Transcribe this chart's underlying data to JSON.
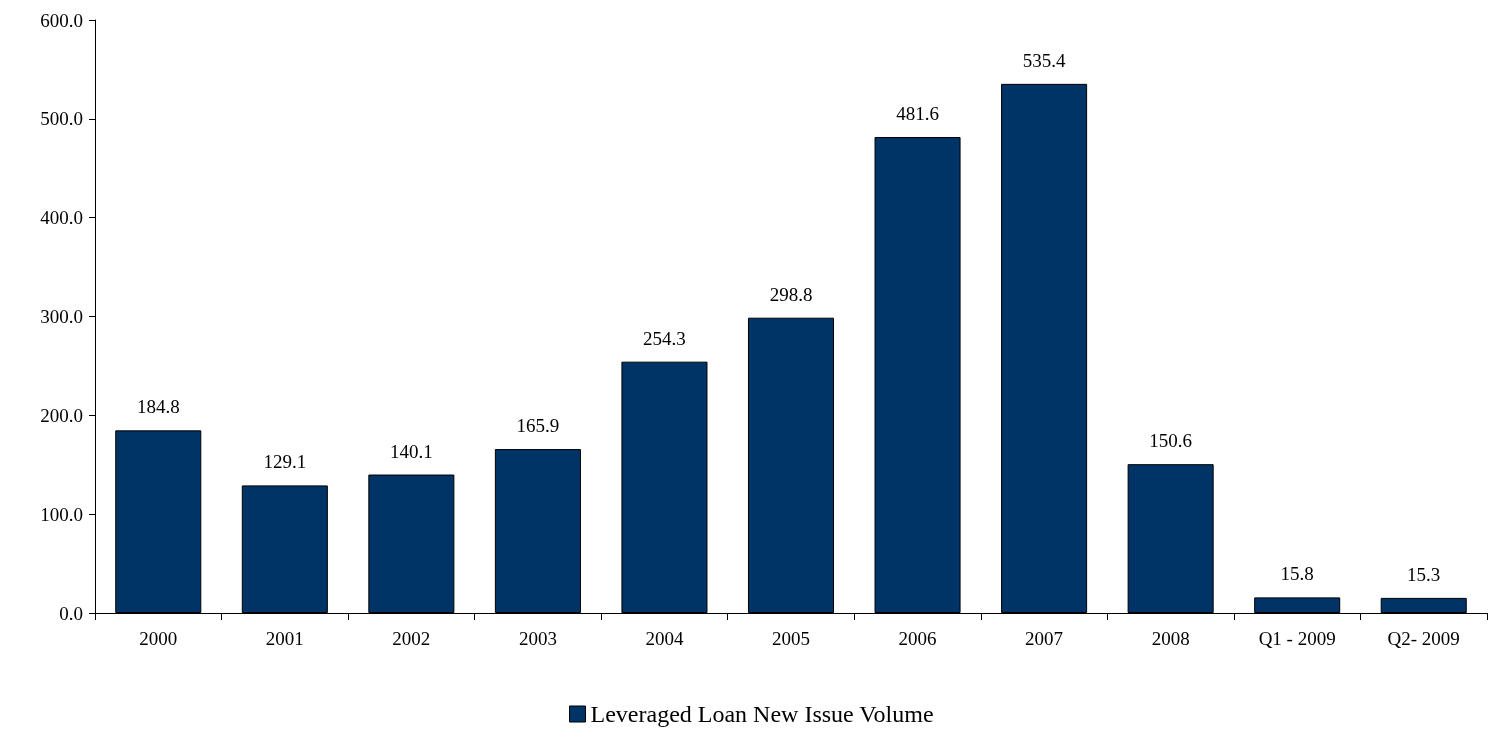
{
  "chart_data": {
    "type": "bar",
    "categories": [
      "2000",
      "2001",
      "2002",
      "2003",
      "2004",
      "2005",
      "2006",
      "2007",
      "2008",
      "Q1 - 2009",
      "Q2- 2009"
    ],
    "series": [
      {
        "name": "Leveraged Loan New Issue Volume",
        "color": "#003366",
        "values": [
          184.8,
          129.1,
          140.1,
          165.9,
          254.3,
          298.8,
          481.6,
          535.4,
          150.6,
          15.8,
          15.3
        ]
      }
    ],
    "ylim": [
      0,
      600
    ],
    "yticks": [
      {
        "value": 0,
        "label": "0.0"
      },
      {
        "value": 100,
        "label": "100.0"
      },
      {
        "value": 200,
        "label": "200.0"
      },
      {
        "value": 300,
        "label": "300.0"
      },
      {
        "value": 400,
        "label": "400.0"
      },
      {
        "value": 500,
        "label": "500.0"
      },
      {
        "value": 600,
        "label": "600.0"
      }
    ],
    "data_labels": true,
    "grid": false,
    "legend": "bottom"
  }
}
